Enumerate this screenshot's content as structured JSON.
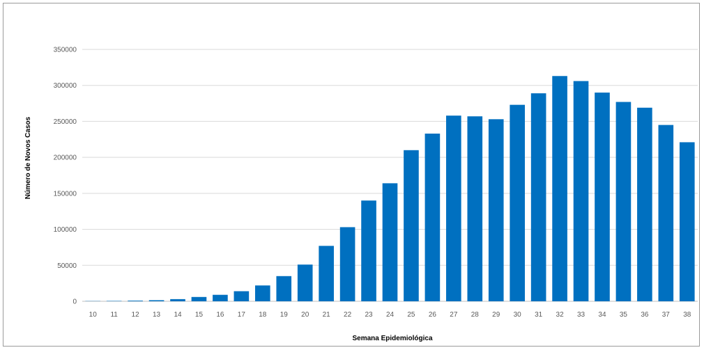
{
  "chart_data": {
    "type": "bar",
    "title": "",
    "xlabel": "Semana Epidemiológica",
    "ylabel": "Número de Novos Casos",
    "categories": [
      "10",
      "11",
      "12",
      "13",
      "14",
      "15",
      "16",
      "17",
      "18",
      "19",
      "20",
      "21",
      "22",
      "23",
      "24",
      "25",
      "26",
      "27",
      "28",
      "29",
      "30",
      "31",
      "32",
      "33",
      "34",
      "35",
      "36",
      "37",
      "38"
    ],
    "series": [
      {
        "values": [
          300,
          500,
          900,
          1500,
          3000,
          6000,
          9000,
          14000,
          22000,
          35000,
          51000,
          77000,
          103000,
          140000,
          164000,
          210000,
          233000,
          258000,
          257000,
          253000,
          273000,
          289000,
          313000,
          306000,
          290000,
          277000,
          269000,
          245000,
          221000
        ]
      }
    ],
    "ylim": [
      0,
      350000
    ],
    "yticks": [
      0,
      50000,
      100000,
      150000,
      200000,
      250000,
      300000,
      350000
    ],
    "grid": true,
    "legend": "none",
    "bar_color": "#0070C0",
    "grid_color": "#D9D9D9"
  }
}
